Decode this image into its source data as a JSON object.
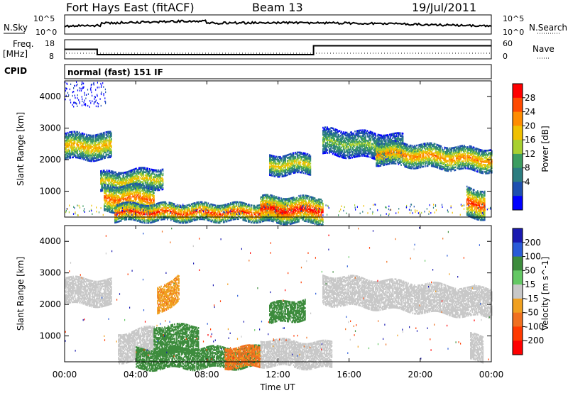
{
  "header": {
    "radar": "Fort Hays East (fitACF)",
    "beam": "Beam 13",
    "date": "19/Jul/2011"
  },
  "status_panels": {
    "nsky_label": "N.Sky",
    "nsearch_label": "N.Search",
    "log_top": "10^5",
    "log_bottom": "10^0",
    "freq_label_1": "Freq.",
    "freq_label_2": "[MHz]",
    "freq_ticks": [
      "18",
      "8"
    ],
    "nave_label": "Nave",
    "nave_ticks": [
      "60",
      "0"
    ],
    "cpid_label": "CPID",
    "cpid_value": "normal (fast) 151 IF"
  },
  "power_panel": {
    "ylabel": "Slant Range [km]",
    "cbar_label": "Power [dB]",
    "cbar_ticks": [
      "28",
      "24",
      "20",
      "16",
      "12",
      "8",
      "4"
    ],
    "cbar_colors": [
      "#ff0000",
      "#ff4a00",
      "#ff8c00",
      "#f0c000",
      "#a8d030",
      "#3c9d60",
      "#2c7d80",
      "#1e4fb0",
      "#0000ff"
    ]
  },
  "velocity_panel": {
    "ylabel": "Slant Range [km]",
    "cbar_label": "Velocity [m s^-1]",
    "cbar_ticks": [
      "200",
      "100",
      "50",
      "15",
      "-15",
      "-50",
      "-100",
      "-200"
    ],
    "cbar_colors": [
      "#1a1ab0",
      "#2a5bd8",
      "#3d8c3d",
      "#64c864",
      "#c8c8c8",
      "#f0a020",
      "#f07020",
      "#ff3a00",
      "#ff0000"
    ]
  },
  "x_axis": {
    "label": "Time UT",
    "ticks": [
      "00:00",
      "04:00",
      "08:00",
      "12:00",
      "16:00",
      "20:00",
      "00:00"
    ]
  },
  "chart_data": {
    "type": "heatmap",
    "title": "Fort Hays East (fitACF)   Beam 13   19/Jul/2011",
    "xlabel": "Time UT",
    "ylabel": "Slant Range [km]",
    "xlim": [
      "00:00",
      "24:00"
    ],
    "ylim": [
      180,
      4500
    ],
    "y_ticks": [
      1000,
      2000,
      3000,
      4000
    ],
    "power_scale_db": [
      0,
      30
    ],
    "velocity_scale_ms": [
      -250,
      250
    ],
    "frequency_mhz": {
      "values": [
        {
          "from": "00:00",
          "to": "01:50",
          "value": 13
        },
        {
          "from": "01:50",
          "to": "14:00",
          "value": 10
        },
        {
          "from": "14:00",
          "to": "24:00",
          "value": 15
        }
      ],
      "ylim": [
        8,
        18
      ]
    },
    "power_bands": [
      {
        "t0": 0.0,
        "t1": 2.6,
        "r_start": 2450,
        "r_end": 2450,
        "width": 280,
        "peak_db": 20
      },
      {
        "t0": 2.0,
        "t1": 5.5,
        "r_start": 1300,
        "r_end": 1450,
        "width": 180,
        "peak_db": 18
      },
      {
        "t0": 2.2,
        "t1": 5.0,
        "r_start": 800,
        "r_end": 800,
        "width": 260,
        "peak_db": 24
      },
      {
        "t0": 2.8,
        "t1": 12.5,
        "r_start": 350,
        "r_end": 360,
        "width": 140,
        "peak_db": 26
      },
      {
        "t0": 11.0,
        "t1": 14.5,
        "r_start": 450,
        "r_end": 420,
        "width": 280,
        "peak_db": 28
      },
      {
        "t0": 11.5,
        "t1": 13.8,
        "r_start": 1850,
        "r_end": 1900,
        "width": 200,
        "peak_db": 18
      },
      {
        "t0": 14.5,
        "t1": 19.0,
        "r_start": 2600,
        "r_end": 2400,
        "width": 250,
        "peak_db": 14
      },
      {
        "t0": 17.5,
        "t1": 24.0,
        "r_start": 2250,
        "r_end": 2000,
        "width": 220,
        "peak_db": 22
      },
      {
        "t0": 22.6,
        "t1": 23.6,
        "r_start": 700,
        "r_end": 600,
        "width": 300,
        "peak_db": 26
      }
    ],
    "velocity_bands": [
      {
        "t0": 0.0,
        "t1": 2.6,
        "r_start": 2450,
        "r_end": 2400,
        "width": 250,
        "vel": 0
      },
      {
        "t0": 5.2,
        "t1": 6.4,
        "r_start": 2100,
        "r_end": 2600,
        "width": 250,
        "vel": -40
      },
      {
        "t0": 3.0,
        "t1": 5.0,
        "r_start": 650,
        "r_end": 850,
        "width": 300,
        "vel": 0
      },
      {
        "t0": 5.0,
        "t1": 7.5,
        "r_start": 900,
        "r_end": 900,
        "width": 300,
        "vel": 60
      },
      {
        "t0": 4.0,
        "t1": 11.0,
        "r_start": 300,
        "r_end": 350,
        "width": 160,
        "vel": 60
      },
      {
        "t0": 9.0,
        "t1": 11.0,
        "r_start": 350,
        "r_end": 350,
        "width": 170,
        "vel": -60
      },
      {
        "t0": 11.0,
        "t1": 15.0,
        "r_start": 500,
        "r_end": 400,
        "width": 260,
        "vel": 0
      },
      {
        "t0": 11.5,
        "t1": 13.5,
        "r_start": 1700,
        "r_end": 1900,
        "width": 200,
        "vel": 60
      },
      {
        "t0": 14.5,
        "t1": 24.0,
        "r_start": 2500,
        "r_end": 2050,
        "width": 300,
        "vel": 0
      },
      {
        "t0": 22.8,
        "t1": 23.5,
        "r_start": 650,
        "r_end": 600,
        "width": 280,
        "vel": 0
      }
    ]
  }
}
